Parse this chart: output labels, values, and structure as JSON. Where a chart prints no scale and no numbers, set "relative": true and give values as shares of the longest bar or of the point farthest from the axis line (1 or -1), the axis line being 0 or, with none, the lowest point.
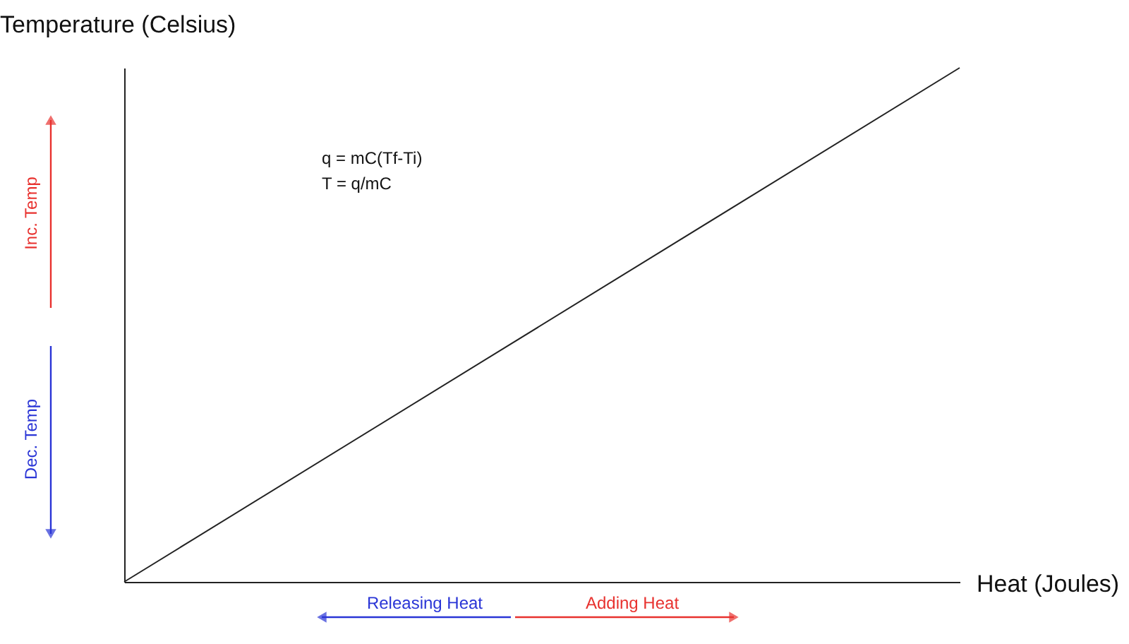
{
  "chart_data": {
    "type": "line",
    "relative": true,
    "xlabel": "Heat (Joules)",
    "ylabel": "Temperature (Celsius)",
    "categories": [
      null,
      null
    ],
    "series": [
      {
        "color": "#222222",
        "values": [
          0,
          1
        ]
      }
    ],
    "annotations": [
      "q = mC(Tf-Ti)",
      "T = q/mC",
      "Inc. Temp",
      "Dec. Temp",
      "Releasing Heat",
      "Adding Heat"
    ],
    "grid": false,
    "legend": false,
    "tick_labels": false,
    "marker": "none",
    "line_style": "solid"
  }
}
